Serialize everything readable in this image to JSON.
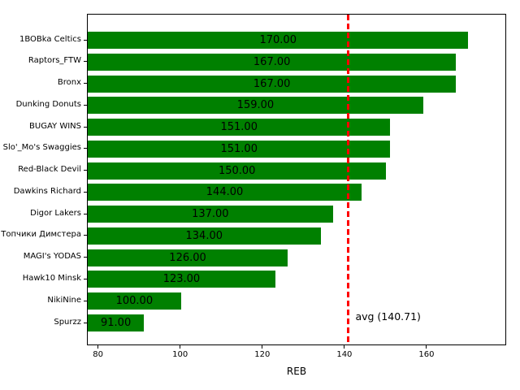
{
  "chart_data": {
    "type": "bar",
    "orientation": "horizontal",
    "title": "",
    "xlabel": "REB",
    "ylabel": "",
    "categories": [
      "1BOBka Celtics",
      "Raptors_FTW",
      "Bronx",
      "Dunking Donuts",
      "BUGAY WINS",
      "Slo'_Mo's Swaggies",
      "Red-Black Devil",
      "Dawkins Richard",
      "Digor Lakers",
      "Топчики Димстера",
      "MAGI's YODAS",
      "Hawk10 Minsk",
      "NikiNine",
      "Spurzz"
    ],
    "values": [
      170,
      167,
      167,
      159,
      151,
      151,
      150,
      144,
      137,
      134,
      126,
      123,
      100,
      91
    ],
    "value_labels": [
      "170.00",
      "167.00",
      "167.00",
      "159.00",
      "151.00",
      "151.00",
      "150.00",
      "144.00",
      "137.00",
      "134.00",
      "126.00",
      "123.00",
      "100.00",
      "91.00"
    ],
    "xticks": [
      80,
      100,
      120,
      140,
      160
    ],
    "xtick_labels": [
      "80",
      "100",
      "120",
      "140",
      "160"
    ],
    "xlim": [
      77.3,
      179.4
    ],
    "grid": false,
    "bar_color": "#008000",
    "text_color": "#000000",
    "background_color": "#ffffff",
    "avg_line": {
      "value": 140.71,
      "label": "avg (140.71)",
      "color": "#ff0000",
      "style": "dashed"
    }
  }
}
